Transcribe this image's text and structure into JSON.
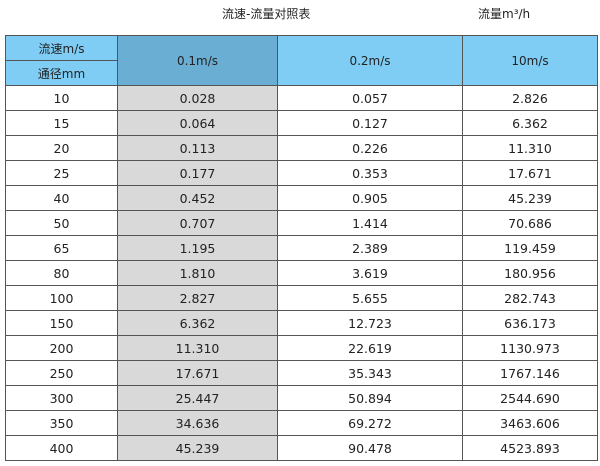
{
  "title": "流速-流量对照表",
  "unit_label": "流量m³/h",
  "header": {
    "velocity_label": "流速m/s",
    "diameter_label": "通径mm",
    "columns": [
      "0.1m/s",
      "0.2m/s",
      "10m/s"
    ]
  },
  "colors": {
    "header": "#7fcdf5",
    "header_highlight": "#6aafd3",
    "highlight_column": "#d9d9d9"
  },
  "rows": [
    {
      "dn": "10",
      "v": [
        "0.028",
        "0.057",
        "2.826"
      ]
    },
    {
      "dn": "15",
      "v": [
        "0.064",
        "0.127",
        "6.362"
      ]
    },
    {
      "dn": "20",
      "v": [
        "0.113",
        "0.226",
        "11.310"
      ]
    },
    {
      "dn": "25",
      "v": [
        "0.177",
        "0.353",
        "17.671"
      ]
    },
    {
      "dn": "40",
      "v": [
        "0.452",
        "0.905",
        "45.239"
      ]
    },
    {
      "dn": "50",
      "v": [
        "0.707",
        "1.414",
        "70.686"
      ]
    },
    {
      "dn": "65",
      "v": [
        "1.195",
        "2.389",
        "119.459"
      ]
    },
    {
      "dn": "80",
      "v": [
        "1.810",
        "3.619",
        "180.956"
      ]
    },
    {
      "dn": "100",
      "v": [
        "2.827",
        "5.655",
        "282.743"
      ]
    },
    {
      "dn": "150",
      "v": [
        "6.362",
        "12.723",
        "636.173"
      ]
    },
    {
      "dn": "200",
      "v": [
        "11.310",
        "22.619",
        "1130.973"
      ]
    },
    {
      "dn": "250",
      "v": [
        "17.671",
        "35.343",
        "1767.146"
      ]
    },
    {
      "dn": "300",
      "v": [
        "25.447",
        "50.894",
        "2544.690"
      ]
    },
    {
      "dn": "350",
      "v": [
        "34.636",
        "69.272",
        "3463.606"
      ]
    },
    {
      "dn": "400",
      "v": [
        "45.239",
        "90.478",
        "4523.893"
      ]
    }
  ]
}
